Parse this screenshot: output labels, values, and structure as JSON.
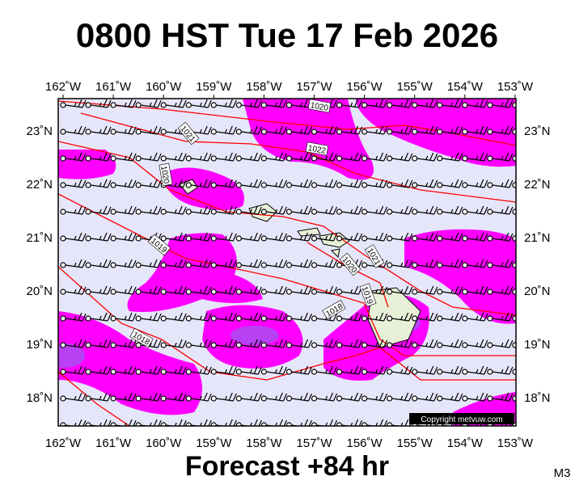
{
  "title": "0800 HST Tue 17 Feb 2026",
  "lon_labels": [
    "162˚W",
    "161˚W",
    "160˚W",
    "159˚W",
    "158˚W",
    "157˚W",
    "156˚W",
    "155˚W",
    "154˚W",
    "153˚W"
  ],
  "lat_labels": [
    "23˚N",
    "22˚N",
    "21˚N",
    "20˚N",
    "19˚N",
    "18˚N"
  ],
  "isobar_labels": [
    "1020",
    "1021",
    "1022",
    "1020",
    "1019",
    "1021",
    "1020",
    "1019",
    "1018",
    "1018"
  ],
  "copyright": "Copyright metvuw.com",
  "footer": "Forecast +84 hr",
  "code": "M3"
}
